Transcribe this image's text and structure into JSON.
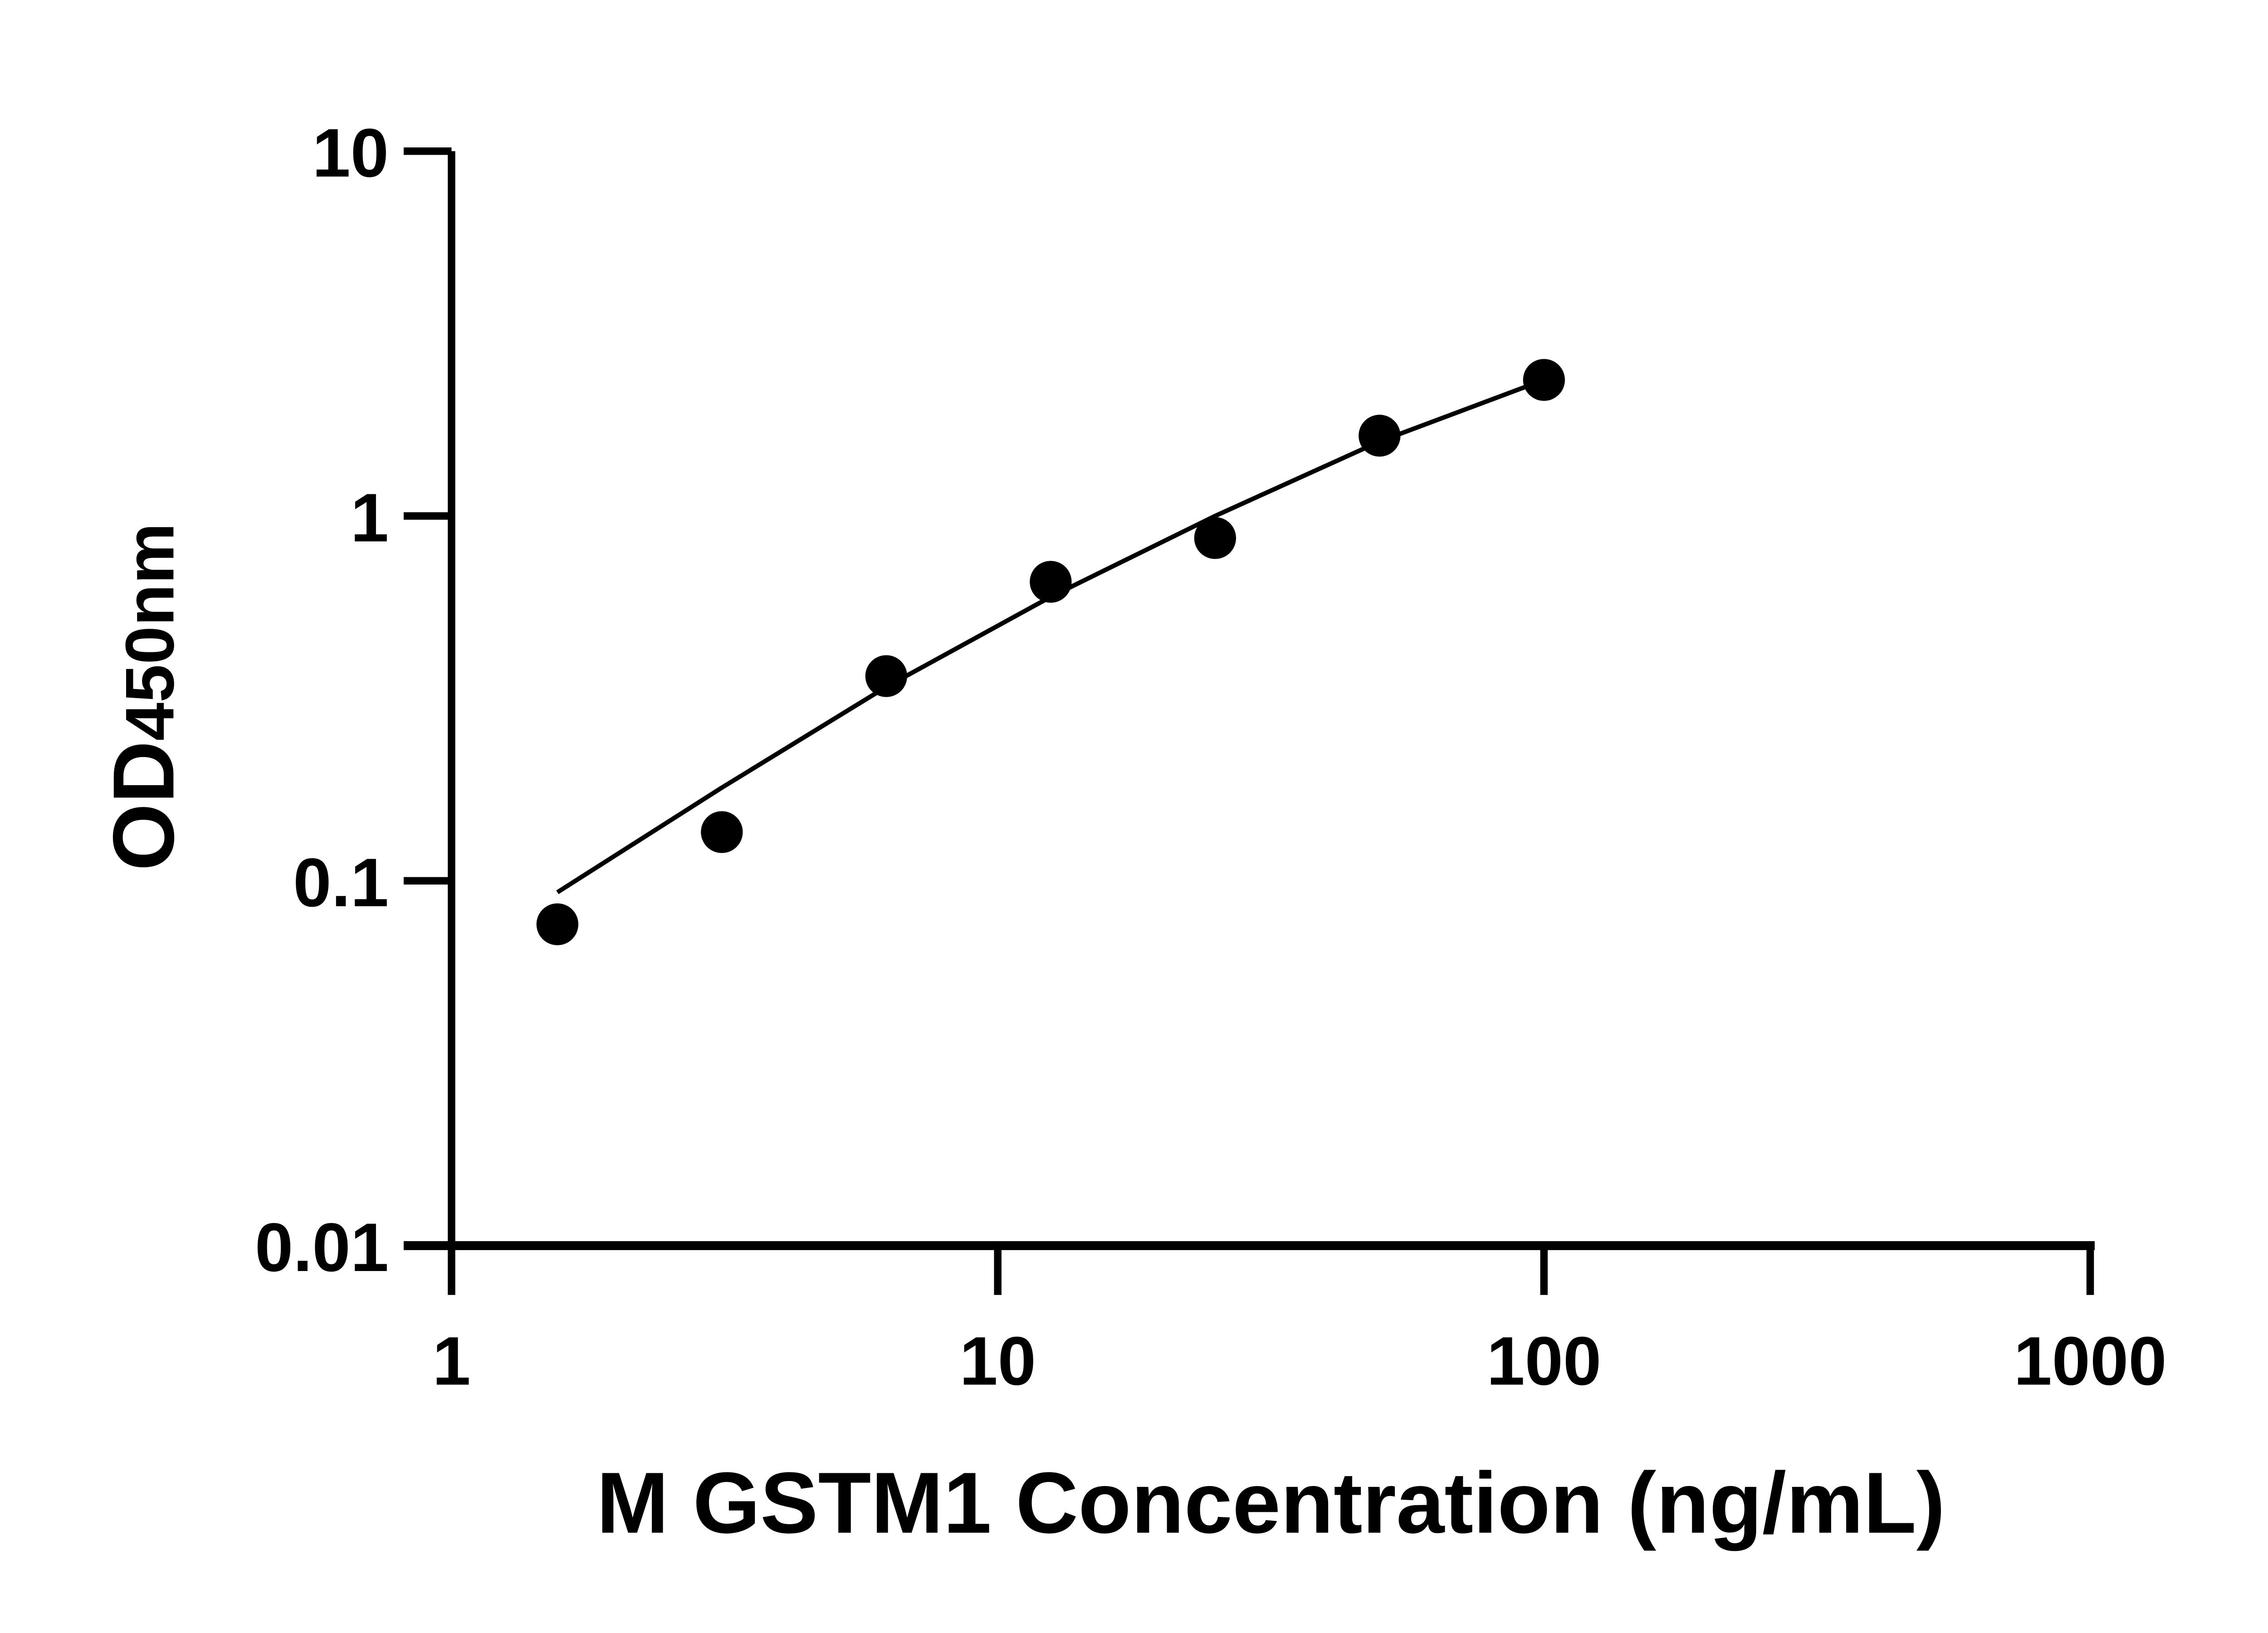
{
  "chart_data": {
    "type": "scatter",
    "xlabel": "M GSTM1 Concentration (ng/mL)",
    "ylabel_main": "OD",
    "ylabel_sub": "450nm",
    "xscale": "log",
    "yscale": "log",
    "xlim": [
      1,
      1000
    ],
    "ylim": [
      0.01,
      10
    ],
    "xticks": [
      "1",
      "10",
      "100",
      "1000"
    ],
    "yticks": [
      "0.01",
      "0.1",
      "1",
      "10"
    ],
    "grid": false,
    "legend": "none",
    "points": {
      "x": [
        1.5625,
        3.125,
        6.25,
        12.5,
        25,
        50,
        100
      ],
      "y": [
        0.076,
        0.136,
        0.364,
        0.66,
        0.87,
        1.66,
        2.36
      ]
    },
    "fit_curve": {
      "x": [
        1.5625,
        3.125,
        6.25,
        12.5,
        25,
        50,
        100
      ],
      "y": [
        0.093,
        0.18,
        0.34,
        0.6,
        1.0,
        1.6,
        2.36
      ]
    },
    "colors": {
      "marker": "#000000",
      "line": "#000000",
      "axis": "#000000"
    }
  }
}
